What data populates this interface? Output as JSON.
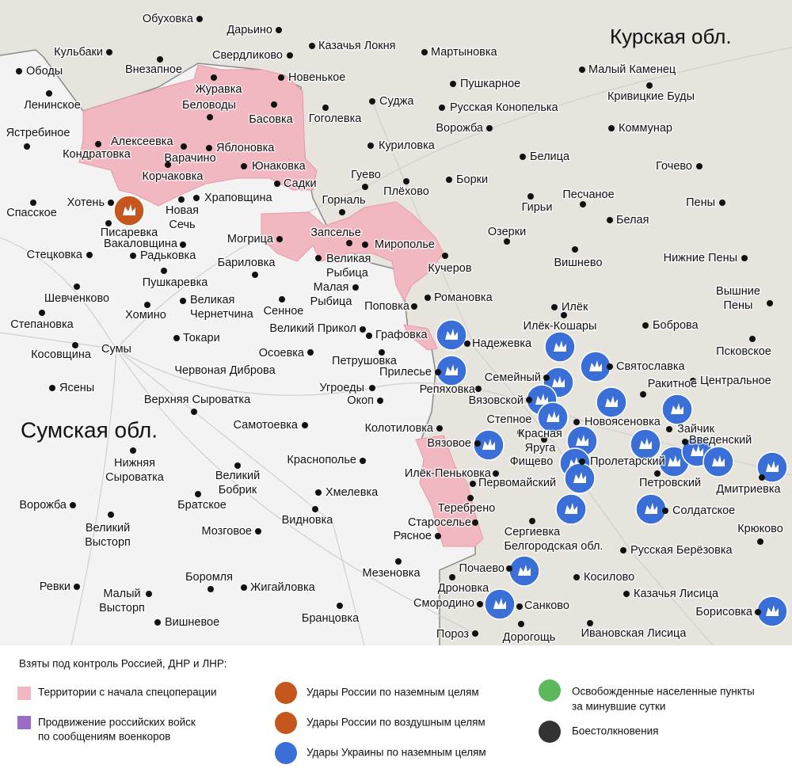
{
  "map": {
    "regions": [
      "Курская обл.",
      "Сумская обл.",
      "Белгородская обл."
    ],
    "places": [
      "Обуховка",
      "Дарьино",
      "Кульбаки",
      "Свердликово",
      "Казачья Локня",
      "Мартыновка",
      "Ободы",
      "Внезапное",
      "Журавка",
      "Новенькое",
      "Малый Каменец",
      "Пушкарное",
      "Кривицкие Буды",
      "Ленинское",
      "Беловоды",
      "Суджа",
      "Гоголевка",
      "Русская Конопелька",
      "Басовка",
      "Ястребиное",
      "Ворожба",
      "Коммунар",
      "Алексеевка",
      "Кондратовка",
      "Яблоновка",
      "Куриловка",
      "Варачино",
      "Белица",
      "Юнаковка",
      "Гочево",
      "Корчаковка",
      "Гуево",
      "Садки",
      "Борки",
      "Плёхово",
      "Хотень",
      "Храповщина",
      "Горналь",
      "Песчаное",
      "Пены",
      "Гирьи",
      "Спасское",
      [
        "Новая",
        "Сечь"
      ],
      "Белая",
      "Писаревка",
      "Озерки",
      "Запселье",
      "Вакаловщина",
      "Могрица",
      "Мирополье",
      "Стецковка",
      "Радьковка",
      "Нижние Пены",
      [
        "Великая",
        "Рыбица"
      ],
      "Бариловка",
      "Кучеров",
      "Вишнево",
      "Пушкаревка",
      [
        "Вышние",
        "Пены"
      ],
      [
        "Малая",
        "Рыбица"
      ],
      "Романовка",
      "Шевченково",
      [
        "Великая",
        "Чернетчина"
      ],
      "Сенное",
      "Поповка",
      "Илёк",
      "Хомино",
      "Степановка",
      "Великий Прикол",
      "Илёк-Кошары",
      "Боброва",
      "Токари",
      "Графовка",
      "Надежевка",
      "Косовщина",
      "Сумы",
      "Осоевка",
      "Псковское",
      "Петрушовка",
      "Червоная Диброва",
      "Святославка",
      "Прилесье",
      "Центральное",
      "Семейный",
      "Угроеды",
      "Ясены",
      "Ракитное",
      "Репяховка",
      "Верхняя Сыроватка",
      "Окоп",
      "Вязовской",
      "Новоясеновка",
      "Зайчик",
      "Самотоевка",
      "Колотиловка",
      "Степное",
      [
        "Красная",
        "Яруга"
      ],
      "Введенский",
      "Вязовое",
      "Фищево",
      "Пролетарский",
      "Краснополье",
      "Илёк-Пеньковка",
      "Дмитриевка",
      "Петровский",
      [
        "Великий",
        "Бобрик"
      ],
      "Первомайский",
      [
        "Нижняя",
        "Сыроватка"
      ],
      "Хмелевка",
      "Ворожба",
      "Братское",
      "Солдатское",
      "Теребрено",
      "Видновка",
      "Староселье",
      [
        "Великий",
        "Высторп"
      ],
      "Мозговое",
      "Рясное",
      "Сергиевка",
      "Крюково",
      "Русская Берёзовка",
      "Почаево",
      "Мезеновка",
      "Боромля",
      "Косилово",
      "Дроновка",
      "Ревки",
      "Жигайловка",
      [
        "Малый",
        "Высторп"
      ],
      "Казачья Лисица",
      "Смородино",
      "Санково",
      "Борисовка",
      "Вишневое",
      "Бранцовка",
      "Дорогощь",
      "Пороз",
      "Ивановская Лисица"
    ]
  },
  "legend": {
    "heading": "Взяты под контроль Россией, ДНР и ЛНР:",
    "items": [
      "Территории с начала спецоперации",
      [
        "Продвижение российских войск",
        "по сообщениям военкоров"
      ],
      "Удары России по наземным целям",
      "Удары России по воздушным целям",
      "Удары Украины по наземным целям",
      [
        "Освобожденные населенные пункты",
        "за минувшие сутки"
      ],
      "Боестолкновения"
    ]
  }
}
